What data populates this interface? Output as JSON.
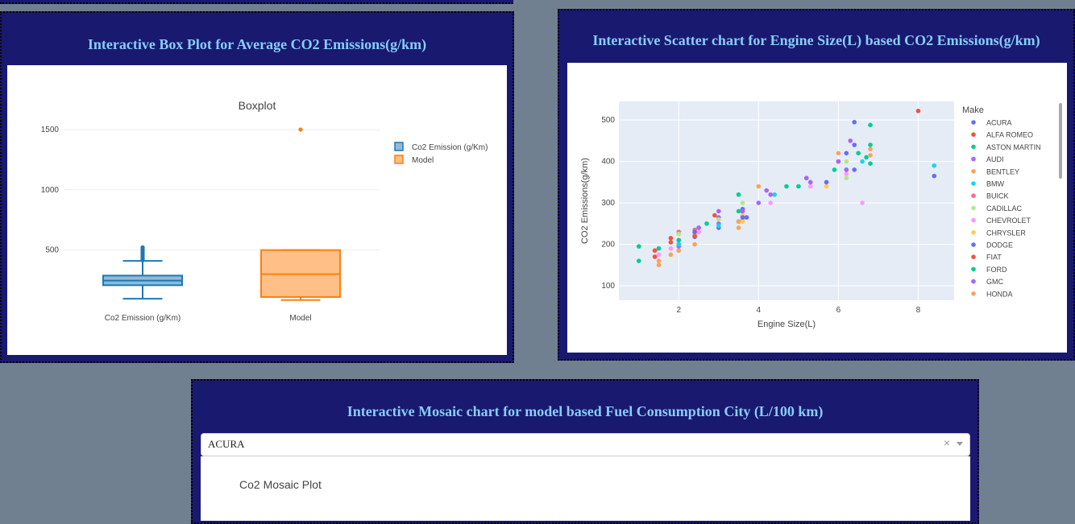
{
  "boxplot_panel": {
    "title": "Interactive Box Plot for Average CO2 Emissions(g/km)"
  },
  "scatter_panel": {
    "title": "Interactive Scatter chart for Engine Size(L) based CO2 Emissions(g/km)"
  },
  "mosaic_panel": {
    "title": "Interactive Mosaic chart for model based Fuel Consumption City (L/100 km)",
    "dropdown_value": "ACURA",
    "clear_symbol": "×",
    "plot_title": "Co2 Mosaic Plot"
  },
  "colors": {
    "page_bg": "#708090",
    "panel_bg": "#191970",
    "title_color": "#87CEFA",
    "box1": "#1f77b4",
    "box2": "#ff7f0e"
  },
  "chart_data": [
    {
      "type": "box",
      "title": "Boxplot",
      "categories": [
        "Co2 Emission (g/Km)",
        "Model"
      ],
      "yticks": [
        500,
        1000,
        1500
      ],
      "ylim": [
        30,
        1600
      ],
      "legend": [
        "Co2 Emission (g/Km)",
        "Model"
      ],
      "legend_position": "top-right",
      "boxes": [
        {
          "name": "Co2 Emission (g/Km)",
          "min": 96,
          "q1": 208,
          "median": 246,
          "q3": 288,
          "upper_fence": 410,
          "outliers": [
            415,
            425,
            440,
            455,
            470,
            485,
            500,
            515,
            522
          ],
          "color": "#1f77b4"
        },
        {
          "name": "Model",
          "min": 85,
          "q1": 110,
          "median": 300,
          "q3": 500,
          "upper_fence": 500,
          "outliers": [
            1500
          ],
          "color": "#ff7f0e"
        }
      ]
    },
    {
      "type": "scatter",
      "xlabel": "Engine Size(L)",
      "ylabel": "CO2 Emissions(g/km)",
      "xticks": [
        2,
        4,
        6,
        8
      ],
      "yticks": [
        100,
        200,
        300,
        400,
        500
      ],
      "xlim": [
        0.5,
        8.9
      ],
      "ylim": [
        65,
        545
      ],
      "legend_title": "Make",
      "legend_position": "right",
      "series": [
        {
          "name": "ACURA",
          "color": "#636efa",
          "points": [
            [
              2.0,
              200
            ],
            [
              2.4,
              225
            ],
            [
              3.0,
              240
            ],
            [
              3.5,
              255
            ],
            [
              3.7,
              265
            ],
            [
              2.4,
              218
            ]
          ]
        },
        {
          "name": "ALFA ROMEO",
          "color": "#EF553B",
          "points": [
            [
              1.8,
              205
            ],
            [
              2.0,
              210
            ],
            [
              2.9,
              270
            ],
            [
              1.8,
              215
            ],
            [
              8.0,
              522
            ]
          ]
        },
        {
          "name": "ASTON MARTIN",
          "color": "#00cc96",
          "points": [
            [
              4.7,
              340
            ],
            [
              5.2,
              360
            ],
            [
              5.9,
              380
            ],
            [
              6.0,
              400
            ],
            [
              6.5,
              420
            ],
            [
              6.8,
              440
            ],
            [
              6.7,
              410
            ],
            [
              6.8,
              488
            ]
          ]
        },
        {
          "name": "AUDI",
          "color": "#ab63fa",
          "points": [
            [
              2.0,
              195
            ],
            [
              2.5,
              230
            ],
            [
              3.0,
              250
            ],
            [
              3.0,
              265
            ],
            [
              4.0,
              300
            ],
            [
              4.2,
              330
            ],
            [
              5.2,
              360
            ],
            [
              6.3,
              450
            ],
            [
              3.0,
              280
            ]
          ]
        },
        {
          "name": "BENTLEY",
          "color": "#FFA15A",
          "points": [
            [
              4.0,
              340
            ],
            [
              6.0,
              400
            ],
            [
              6.0,
              420
            ],
            [
              6.8,
              430
            ],
            [
              6.8,
              415
            ]
          ]
        },
        {
          "name": "BMW",
          "color": "#19d3f3",
          "points": [
            [
              2.0,
              200
            ],
            [
              3.0,
              245
            ],
            [
              4.4,
              320
            ],
            [
              6.6,
              400
            ],
            [
              8.4,
              390
            ],
            [
              2.0,
              185
            ]
          ]
        },
        {
          "name": "BUICK",
          "color": "#FF6692",
          "points": [
            [
              1.4,
              185
            ],
            [
              1.5,
              190
            ],
            [
              2.0,
              230
            ],
            [
              2.5,
              240
            ],
            [
              3.6,
              270
            ],
            [
              3.6,
              280
            ],
            [
              2.4,
              235
            ]
          ]
        },
        {
          "name": "CADILLAC",
          "color": "#B6E880",
          "points": [
            [
              2.0,
              225
            ],
            [
              2.5,
              240
            ],
            [
              3.0,
              260
            ],
            [
              3.6,
              285
            ],
            [
              6.2,
              360
            ],
            [
              6.2,
              400
            ],
            [
              3.6,
              300
            ]
          ]
        },
        {
          "name": "CHEVROLET",
          "color": "#FF97FF",
          "points": [
            [
              1.4,
              170
            ],
            [
              1.5,
              175
            ],
            [
              1.8,
              190
            ],
            [
              2.0,
              210
            ],
            [
              2.5,
              230
            ],
            [
              3.6,
              260
            ],
            [
              4.3,
              300
            ],
            [
              5.3,
              340
            ],
            [
              6.2,
              370
            ],
            [
              6.6,
              300
            ]
          ]
        },
        {
          "name": "CHRYSLER",
          "color": "#FECB52",
          "points": [
            [
              2.4,
              225
            ],
            [
              3.6,
              255
            ],
            [
              3.6,
              270
            ],
            [
              5.7,
              340
            ]
          ]
        },
        {
          "name": "DODGE",
          "color": "#636efa",
          "points": [
            [
              2.4,
              230
            ],
            [
              3.6,
              265
            ],
            [
              3.6,
              285
            ],
            [
              5.7,
              350
            ],
            [
              6.4,
              380
            ],
            [
              6.2,
              420
            ],
            [
              6.4,
              440
            ],
            [
              8.4,
              365
            ],
            [
              6.4,
              495
            ]
          ]
        },
        {
          "name": "FIAT",
          "color": "#EF553B",
          "points": [
            [
              1.4,
              170
            ],
            [
              1.4,
              185
            ],
            [
              2.4,
              220
            ]
          ]
        },
        {
          "name": "FORD",
          "color": "#00cc96",
          "points": [
            [
              1.0,
              160
            ],
            [
              1.0,
              195
            ],
            [
              1.5,
              190
            ],
            [
              2.0,
              210
            ],
            [
              2.7,
              250
            ],
            [
              3.5,
              280
            ],
            [
              3.5,
              320
            ],
            [
              5.0,
              340
            ],
            [
              6.2,
              380
            ],
            [
              6.8,
              395
            ]
          ]
        },
        {
          "name": "GMC",
          "color": "#ab63fa",
          "points": [
            [
              2.5,
              240
            ],
            [
              3.6,
              280
            ],
            [
              4.3,
              320
            ],
            [
              5.3,
              350
            ],
            [
              6.0,
              400
            ],
            [
              6.2,
              380
            ]
          ]
        },
        {
          "name": "HONDA",
          "color": "#FFA15A",
          "points": [
            [
              1.5,
              160
            ],
            [
              1.8,
              175
            ],
            [
              2.0,
              185
            ],
            [
              2.4,
              200
            ],
            [
              3.5,
              240
            ],
            [
              3.5,
              255
            ],
            [
              1.5,
              150
            ]
          ]
        }
      ]
    }
  ]
}
